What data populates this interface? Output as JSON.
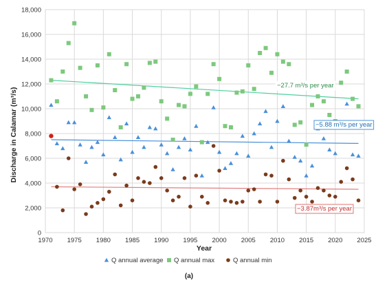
{
  "chart_data": {
    "type": "scatter",
    "xlabel": "Year",
    "ylabel": "Discharge in Calamar (m³/s)",
    "caption": "(a)",
    "xlim": [
      1970,
      2025
    ],
    "ylim": [
      0,
      18000
    ],
    "xticks": [
      "1970",
      "1975",
      "1980",
      "1985",
      "1990",
      "1995",
      "2000",
      "2005",
      "2010",
      "2015",
      "2020",
      "2025"
    ],
    "yticks": [
      "0",
      "2,000",
      "4,000",
      "6,000",
      "8,000",
      "10,000",
      "12,000",
      "14,000",
      "16,000",
      "18,000"
    ],
    "grid": true,
    "legend_position": "bottom",
    "series": [
      {
        "name": "Q annual average",
        "marker": "triangle",
        "color": "#4a90d9",
        "x": [
          1971,
          1972,
          1973,
          1974,
          1975,
          1976,
          1977,
          1978,
          1979,
          1980,
          1981,
          1982,
          1983,
          1984,
          1985,
          1986,
          1987,
          1988,
          1989,
          1990,
          1991,
          1992,
          1993,
          1994,
          1995,
          1996,
          1997,
          1998,
          1999,
          2000,
          2001,
          2002,
          2003,
          2004,
          2005,
          2006,
          2007,
          2008,
          2009,
          2010,
          2011,
          2012,
          2013,
          2014,
          2015,
          2016,
          2017,
          2018,
          2019,
          2020,
          2021,
          2022,
          2023,
          2024
        ],
        "y": [
          10300,
          7200,
          6800,
          8900,
          8900,
          7100,
          5700,
          6900,
          7300,
          6300,
          9300,
          7700,
          5900,
          8800,
          6500,
          7700,
          6900,
          8500,
          8400,
          7100,
          6400,
          5100,
          6900,
          7600,
          6700,
          8600,
          4600,
          7300,
          10100,
          6500,
          5200,
          5600,
          6400,
          7800,
          6200,
          8000,
          8800,
          9800,
          6900,
          9000,
          10200,
          7400,
          6100,
          5800,
          4600,
          5400,
          8400,
          7600,
          6700,
          6400,
          8900,
          10400,
          6300,
          6200
        ]
      },
      {
        "name": "Q annual max",
        "marker": "square",
        "color": "#7dc97d",
        "x": [
          1971,
          1972,
          1973,
          1974,
          1975,
          1976,
          1977,
          1978,
          1979,
          1980,
          1981,
          1982,
          1983,
          1984,
          1985,
          1986,
          1987,
          1988,
          1989,
          1990,
          1991,
          1992,
          1993,
          1994,
          1995,
          1996,
          1997,
          1998,
          1999,
          2000,
          2001,
          2002,
          2003,
          2004,
          2005,
          2006,
          2007,
          2008,
          2009,
          2010,
          2011,
          2012,
          2013,
          2014,
          2015,
          2016,
          2017,
          2018,
          2019,
          2020,
          2021,
          2022,
          2023,
          2024
        ],
        "y": [
          12300,
          10600,
          13000,
          15300,
          16900,
          13300,
          11000,
          9900,
          13500,
          10100,
          14400,
          11500,
          8500,
          13600,
          10800,
          11000,
          11700,
          13700,
          13800,
          10600,
          9200,
          7500,
          10300,
          10200,
          11200,
          11800,
          7300,
          11200,
          13600,
          12400,
          8600,
          8500,
          11300,
          11400,
          13500,
          11600,
          14500,
          14900,
          12900,
          14400,
          13800,
          13600,
          8700,
          8900,
          7100,
          10300,
          11000,
          10600,
          9500,
          9000,
          12100,
          13000,
          10800,
          10200
        ]
      },
      {
        "name": "Q annual min",
        "marker": "circle",
        "color": "#7a3b1c",
        "x": [
          1971,
          1972,
          1973,
          1974,
          1975,
          1976,
          1977,
          1978,
          1979,
          1980,
          1981,
          1982,
          1983,
          1984,
          1985,
          1986,
          1987,
          1988,
          1989,
          1990,
          1991,
          1992,
          1993,
          1994,
          1995,
          1996,
          1997,
          1998,
          1999,
          2000,
          2001,
          2002,
          2003,
          2004,
          2005,
          2006,
          2007,
          2008,
          2009,
          2010,
          2011,
          2012,
          2013,
          2014,
          2015,
          2016,
          2017,
          2018,
          2019,
          2020,
          2021,
          2022,
          2023,
          2024
        ],
        "y": [
          7800,
          3700,
          1800,
          6000,
          3500,
          3900,
          1500,
          2100,
          2400,
          2700,
          3300,
          4700,
          2200,
          3800,
          2600,
          4400,
          4100,
          4000,
          5300,
          4400,
          3400,
          2600,
          2900,
          4400,
          2100,
          4600,
          2900,
          2400,
          7000,
          5000,
          2600,
          2500,
          2400,
          2500,
          3400,
          3500,
          2500,
          4700,
          4600,
          2500,
          5800,
          4300,
          2800,
          3400,
          2900,
          2500,
          3600,
          3400,
          3000,
          2900,
          4100,
          5200,
          4300,
          2600
        ]
      }
    ],
    "trendlines": [
      {
        "series": "Q annual max",
        "label": "−27.7 m³/s per year",
        "color": "#4fcf9f",
        "x": [
          1971,
          2024
        ],
        "y": [
          12300,
          10800
        ]
      },
      {
        "series": "Q annual average",
        "label": "−5.88 m³/s per year",
        "color": "#4a90d9",
        "x": [
          1971,
          2024
        ],
        "y": [
          7500,
          7200
        ]
      },
      {
        "series": "Q annual min",
        "label": "−3.87m³/s per year",
        "color": "#e08080",
        "x": [
          1971,
          2024
        ],
        "y": [
          3700,
          3500
        ]
      }
    ]
  }
}
